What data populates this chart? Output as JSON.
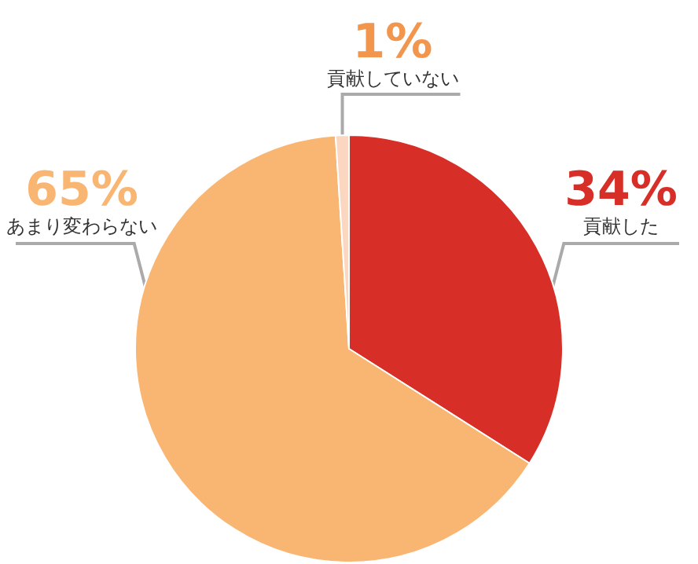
{
  "chart_data": {
    "type": "pie",
    "categories": [
      "貢献した",
      "あまり変わらない",
      "貢献していない"
    ],
    "values": [
      34,
      65,
      1
    ],
    "value_labels": [
      "34%",
      "65%",
      "1%"
    ],
    "colors": [
      "#d72f27",
      "#f9b572",
      "#fbd6c0"
    ]
  }
}
